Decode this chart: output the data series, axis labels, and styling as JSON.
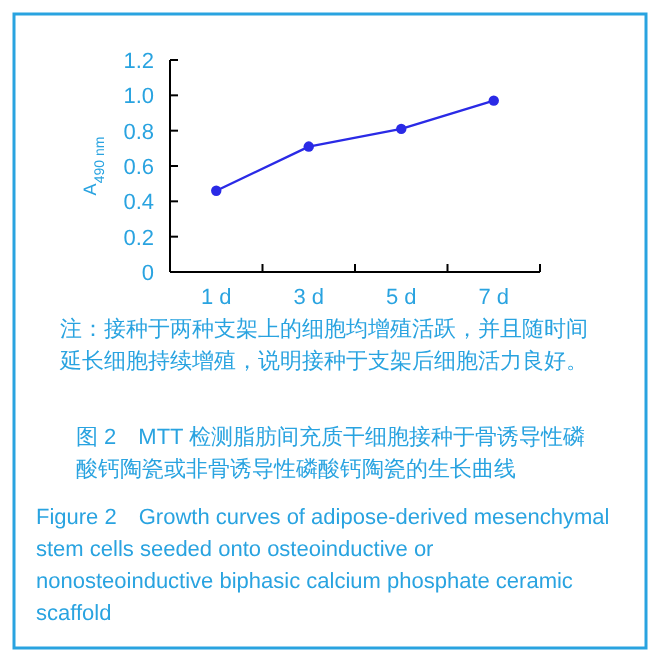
{
  "chart_data": {
    "type": "line",
    "categories": [
      "1 d",
      "3 d",
      "5 d",
      "7 d"
    ],
    "series": [
      {
        "color": "#2a2ae6",
        "values": [
          0.46,
          0.71,
          0.81,
          0.97
        ]
      }
    ],
    "marker": "circle",
    "ylabel": "A$_{490 nm}$",
    "ylim": [
      0,
      1.2
    ],
    "yticks": [
      0,
      0.2,
      0.4,
      0.6,
      0.8,
      {
        "value": 1,
        "label": "1.0"
      },
      1.2
    ],
    "grid": false,
    "annotations": [
      "注：接种于两种支架上的细胞均增殖活跃，并且随时间延长细胞持续增殖，说明接种于支架后细胞活力良好。",
      "图 2　MTT 检测脂肪间充质干细胞接种于骨诱导性磷酸钙陶瓷或非骨诱导性磷酸钙陶瓷的生长曲线",
      "Figure 2　Growth curves of adipose-derived mesenchymal stem cells seeded onto osteoinductive or nonosteoinductive biphasic calcium phosphate ceramic scaffold"
    ]
  }
}
